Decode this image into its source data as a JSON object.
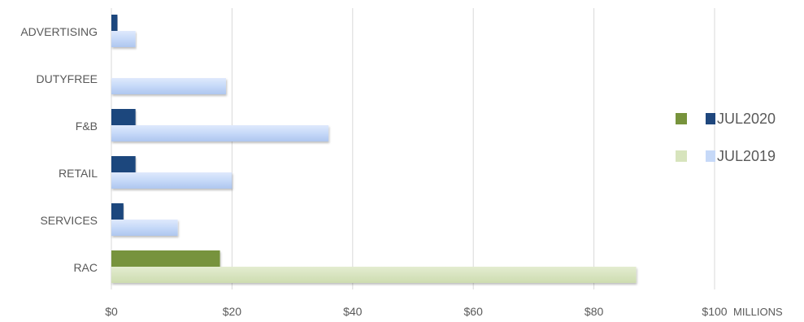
{
  "chart_data": {
    "type": "bar",
    "orientation": "horizontal",
    "categories": [
      "ADVERTISING",
      "DUTYFREE",
      "F&B",
      "RETAIL",
      "SERVICES",
      "RAC"
    ],
    "series": [
      {
        "name": "JUL2020",
        "values": [
          1,
          0,
          4,
          4,
          2,
          18
        ],
        "colors": [
          "#1f477d",
          "#1f477d",
          "#1f477d",
          "#1f477d",
          "#1f477d",
          "#77933c"
        ]
      },
      {
        "name": "JUL2019",
        "values": [
          4,
          19,
          36,
          20,
          11,
          87
        ],
        "colors": [
          "#c6d9f8",
          "#c6d9f8",
          "#c6d9f8",
          "#c6d9f8",
          "#c6d9f8",
          "#d7e4bd"
        ]
      }
    ],
    "xlim": [
      0,
      100
    ],
    "xticks": [
      "$0",
      "$20",
      "$40",
      "$60",
      "$80",
      "$100"
    ],
    "xunit": "MILLIONS",
    "grid": "vertical",
    "legend_position": "right",
    "legend": [
      {
        "label": "JUL2020",
        "swatches": [
          "#77933c",
          "#1f477d"
        ]
      },
      {
        "label": "JUL2019",
        "swatches": [
          "#d7e4bd",
          "#c6d9f8"
        ]
      }
    ]
  }
}
